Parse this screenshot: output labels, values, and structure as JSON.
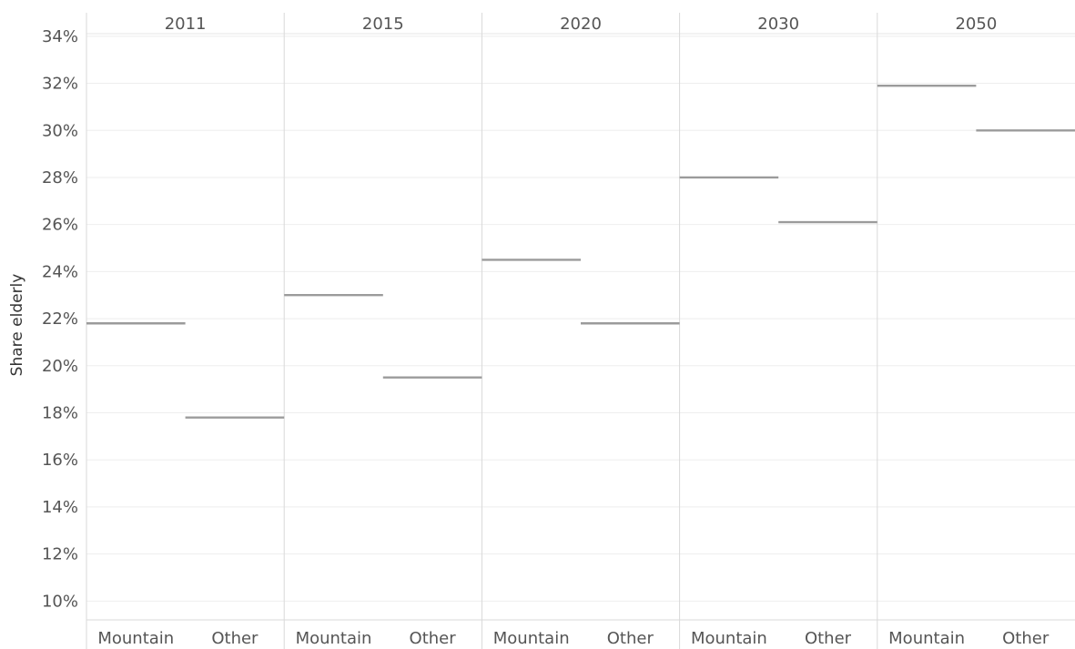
{
  "chart_data": {
    "type": "bar",
    "title": "",
    "xlabel": "",
    "ylabel": "Share elderly",
    "ylim": [
      9.2,
      35
    ],
    "y_ticks": [
      "10%",
      "12%",
      "14%",
      "16%",
      "18%",
      "20%",
      "22%",
      "24%",
      "26%",
      "28%",
      "30%",
      "32%",
      "34%"
    ],
    "y_tick_values": [
      10,
      12,
      14,
      16,
      18,
      20,
      22,
      24,
      26,
      28,
      30,
      32,
      34
    ],
    "panels": [
      "2011",
      "2015",
      "2020",
      "2030",
      "2050"
    ],
    "categories": [
      "Mountain",
      "Other"
    ],
    "mark": "reference-line",
    "values": [
      [
        21.8,
        17.8
      ],
      [
        23.0,
        19.5
      ],
      [
        24.5,
        21.8
      ],
      [
        28.0,
        26.1
      ],
      [
        31.9,
        30.0
      ]
    ],
    "grid": true,
    "line_color": "#9b9b9b"
  }
}
